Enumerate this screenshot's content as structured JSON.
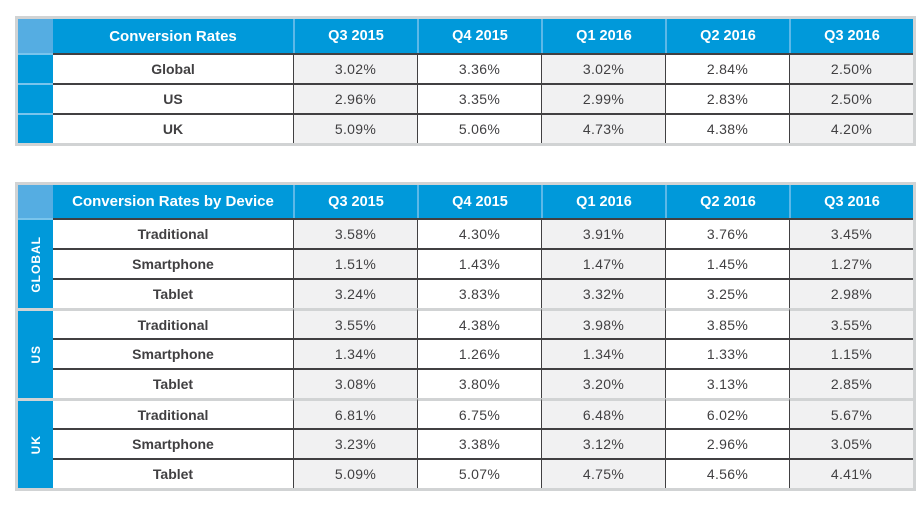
{
  "colors": {
    "header_blue": "#0099DA",
    "corner_light_blue": "#55ADE2",
    "header_divider_blue": "#5CB8E8",
    "frame_gray": "#D1D3D4",
    "shade_gray": "#F1F1F2",
    "rule_dark": "#414042",
    "text_dark": "#414042",
    "header_text": "#FFFFFF"
  },
  "chart_data": [
    {
      "type": "table",
      "title": "Conversion Rates",
      "columns": [
        "Q3 2015",
        "Q4 2015",
        "Q1 2016",
        "Q2 2016",
        "Q3 2016"
      ],
      "rows": [
        {
          "label": "Global",
          "values": [
            "3.02%",
            "3.36%",
            "3.02%",
            "2.84%",
            "2.50%"
          ]
        },
        {
          "label": "US",
          "values": [
            "2.96%",
            "3.35%",
            "2.99%",
            "2.83%",
            "2.50%"
          ]
        },
        {
          "label": "UK",
          "values": [
            "5.09%",
            "5.06%",
            "4.73%",
            "4.38%",
            "4.20%"
          ]
        }
      ]
    },
    {
      "type": "table",
      "title": "Conversion Rates by Device",
      "columns": [
        "Q3 2015",
        "Q4 2015",
        "Q1 2016",
        "Q2 2016",
        "Q3 2016"
      ],
      "groups": [
        {
          "label": "GLOBAL",
          "rows": [
            {
              "label": "Traditional",
              "values": [
                "3.58%",
                "4.30%",
                "3.91%",
                "3.76%",
                "3.45%"
              ]
            },
            {
              "label": "Smartphone",
              "values": [
                "1.51%",
                "1.43%",
                "1.47%",
                "1.45%",
                "1.27%"
              ]
            },
            {
              "label": "Tablet",
              "values": [
                "3.24%",
                "3.83%",
                "3.32%",
                "3.25%",
                "2.98%"
              ]
            }
          ]
        },
        {
          "label": "US",
          "rows": [
            {
              "label": "Traditional",
              "values": [
                "3.55%",
                "4.38%",
                "3.98%",
                "3.85%",
                "3.55%"
              ]
            },
            {
              "label": "Smartphone",
              "values": [
                "1.34%",
                "1.26%",
                "1.34%",
                "1.33%",
                "1.15%"
              ]
            },
            {
              "label": "Tablet",
              "values": [
                "3.08%",
                "3.80%",
                "3.20%",
                "3.13%",
                "2.85%"
              ]
            }
          ]
        },
        {
          "label": "UK",
          "rows": [
            {
              "label": "Traditional",
              "values": [
                "6.81%",
                "6.75%",
                "6.48%",
                "6.02%",
                "5.67%"
              ]
            },
            {
              "label": "Smartphone",
              "values": [
                "3.23%",
                "3.38%",
                "3.12%",
                "2.96%",
                "3.05%"
              ]
            },
            {
              "label": "Tablet",
              "values": [
                "5.09%",
                "5.07%",
                "4.75%",
                "4.56%",
                "4.41%"
              ]
            }
          ]
        }
      ]
    }
  ]
}
